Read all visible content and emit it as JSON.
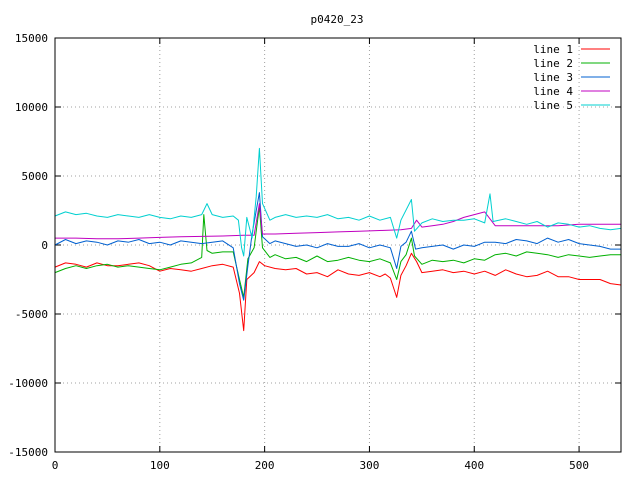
{
  "chart_data": {
    "type": "line",
    "title": "p0420_23",
    "xlabel": "",
    "ylabel": "",
    "xlim": [
      0,
      540
    ],
    "ylim": [
      -15000,
      15000
    ],
    "x_ticks": [
      0,
      100,
      200,
      300,
      400,
      500
    ],
    "y_ticks": [
      -15000,
      -10000,
      -5000,
      0,
      5000,
      10000,
      15000
    ],
    "grid": true,
    "legend_position": "top-right",
    "colors": {
      "line 1": "#ff0000",
      "line 2": "#00b000",
      "line 3": "#0060d0",
      "line 4": "#c000c0",
      "line 5": "#00d0d0"
    },
    "series": [
      {
        "name": "line 1",
        "points": [
          [
            0,
            -1600
          ],
          [
            10,
            -1300
          ],
          [
            20,
            -1400
          ],
          [
            30,
            -1600
          ],
          [
            40,
            -1300
          ],
          [
            50,
            -1500
          ],
          [
            60,
            -1500
          ],
          [
            70,
            -1400
          ],
          [
            80,
            -1300
          ],
          [
            90,
            -1500
          ],
          [
            100,
            -1900
          ],
          [
            110,
            -1700
          ],
          [
            120,
            -1800
          ],
          [
            130,
            -1900
          ],
          [
            140,
            -1700
          ],
          [
            150,
            -1500
          ],
          [
            160,
            -1400
          ],
          [
            170,
            -1600
          ],
          [
            176,
            -3500
          ],
          [
            180,
            -6200
          ],
          [
            183,
            -2500
          ],
          [
            190,
            -2000
          ],
          [
            195,
            -1200
          ],
          [
            200,
            -1500
          ],
          [
            210,
            -1700
          ],
          [
            220,
            -1800
          ],
          [
            230,
            -1700
          ],
          [
            240,
            -2100
          ],
          [
            250,
            -2000
          ],
          [
            260,
            -2300
          ],
          [
            270,
            -1800
          ],
          [
            280,
            -2100
          ],
          [
            290,
            -2200
          ],
          [
            300,
            -2000
          ],
          [
            310,
            -2300
          ],
          [
            315,
            -2100
          ],
          [
            320,
            -2400
          ],
          [
            326,
            -3800
          ],
          [
            330,
            -2200
          ],
          [
            335,
            -1500
          ],
          [
            340,
            -600
          ],
          [
            345,
            -1200
          ],
          [
            350,
            -2000
          ],
          [
            360,
            -1900
          ],
          [
            370,
            -1800
          ],
          [
            380,
            -2000
          ],
          [
            390,
            -1900
          ],
          [
            400,
            -2100
          ],
          [
            410,
            -1900
          ],
          [
            420,
            -2200
          ],
          [
            430,
            -1800
          ],
          [
            440,
            -2100
          ],
          [
            450,
            -2300
          ],
          [
            460,
            -2200
          ],
          [
            470,
            -1900
          ],
          [
            480,
            -2300
          ],
          [
            490,
            -2300
          ],
          [
            500,
            -2500
          ],
          [
            510,
            -2500
          ],
          [
            520,
            -2500
          ],
          [
            530,
            -2800
          ],
          [
            540,
            -2900
          ]
        ]
      },
      {
        "name": "line 2",
        "points": [
          [
            0,
            -2000
          ],
          [
            10,
            -1700
          ],
          [
            20,
            -1500
          ],
          [
            30,
            -1700
          ],
          [
            40,
            -1500
          ],
          [
            50,
            -1400
          ],
          [
            60,
            -1600
          ],
          [
            70,
            -1500
          ],
          [
            80,
            -1600
          ],
          [
            90,
            -1700
          ],
          [
            100,
            -1800
          ],
          [
            110,
            -1600
          ],
          [
            120,
            -1400
          ],
          [
            130,
            -1300
          ],
          [
            140,
            -900
          ],
          [
            142,
            2200
          ],
          [
            145,
            -400
          ],
          [
            150,
            -600
          ],
          [
            160,
            -500
          ],
          [
            170,
            -500
          ],
          [
            176,
            -2500
          ],
          [
            180,
            -3800
          ],
          [
            184,
            -1000
          ],
          [
            190,
            -200
          ],
          [
            195,
            2800
          ],
          [
            198,
            -200
          ],
          [
            205,
            -900
          ],
          [
            210,
            -700
          ],
          [
            220,
            -1000
          ],
          [
            230,
            -900
          ],
          [
            240,
            -1200
          ],
          [
            250,
            -800
          ],
          [
            260,
            -1200
          ],
          [
            270,
            -1100
          ],
          [
            280,
            -900
          ],
          [
            290,
            -1100
          ],
          [
            300,
            -1200
          ],
          [
            310,
            -1000
          ],
          [
            320,
            -1300
          ],
          [
            326,
            -2500
          ],
          [
            330,
            -1200
          ],
          [
            335,
            -700
          ],
          [
            340,
            500
          ],
          [
            343,
            -800
          ],
          [
            350,
            -1400
          ],
          [
            360,
            -1100
          ],
          [
            370,
            -1200
          ],
          [
            380,
            -1100
          ],
          [
            390,
            -1300
          ],
          [
            400,
            -1000
          ],
          [
            410,
            -1100
          ],
          [
            420,
            -700
          ],
          [
            430,
            -600
          ],
          [
            440,
            -800
          ],
          [
            450,
            -500
          ],
          [
            460,
            -600
          ],
          [
            470,
            -700
          ],
          [
            480,
            -900
          ],
          [
            490,
            -700
          ],
          [
            500,
            -800
          ],
          [
            510,
            -900
          ],
          [
            520,
            -800
          ],
          [
            530,
            -700
          ],
          [
            540,
            -700
          ]
        ]
      },
      {
        "name": "line 3",
        "points": [
          [
            0,
            0
          ],
          [
            10,
            400
          ],
          [
            20,
            100
          ],
          [
            30,
            300
          ],
          [
            40,
            200
          ],
          [
            50,
            0
          ],
          [
            60,
            300
          ],
          [
            70,
            200
          ],
          [
            80,
            400
          ],
          [
            90,
            100
          ],
          [
            100,
            200
          ],
          [
            110,
            0
          ],
          [
            120,
            300
          ],
          [
            130,
            200
          ],
          [
            140,
            100
          ],
          [
            150,
            200
          ],
          [
            160,
            300
          ],
          [
            170,
            -200
          ],
          [
            176,
            -2800
          ],
          [
            180,
            -4000
          ],
          [
            184,
            -1500
          ],
          [
            188,
            800
          ],
          [
            195,
            3800
          ],
          [
            198,
            600
          ],
          [
            205,
            100
          ],
          [
            210,
            300
          ],
          [
            220,
            100
          ],
          [
            230,
            -100
          ],
          [
            240,
            0
          ],
          [
            250,
            -200
          ],
          [
            260,
            100
          ],
          [
            270,
            -100
          ],
          [
            280,
            -100
          ],
          [
            290,
            100
          ],
          [
            300,
            -200
          ],
          [
            310,
            0
          ],
          [
            320,
            -200
          ],
          [
            326,
            -1700
          ],
          [
            330,
            -100
          ],
          [
            335,
            200
          ],
          [
            340,
            1000
          ],
          [
            344,
            -300
          ],
          [
            350,
            -200
          ],
          [
            360,
            -100
          ],
          [
            370,
            0
          ],
          [
            380,
            -300
          ],
          [
            390,
            0
          ],
          [
            400,
            -100
          ],
          [
            410,
            200
          ],
          [
            420,
            200
          ],
          [
            430,
            100
          ],
          [
            440,
            400
          ],
          [
            450,
            300
          ],
          [
            460,
            100
          ],
          [
            470,
            500
          ],
          [
            480,
            200
          ],
          [
            490,
            400
          ],
          [
            500,
            100
          ],
          [
            510,
            0
          ],
          [
            520,
            -100
          ],
          [
            530,
            -300
          ],
          [
            540,
            -300
          ]
        ]
      },
      {
        "name": "line 4",
        "points": [
          [
            0,
            500
          ],
          [
            20,
            500
          ],
          [
            40,
            450
          ],
          [
            60,
            450
          ],
          [
            80,
            500
          ],
          [
            100,
            550
          ],
          [
            120,
            600
          ],
          [
            140,
            620
          ],
          [
            160,
            650
          ],
          [
            180,
            700
          ],
          [
            190,
            700
          ],
          [
            195,
            3000
          ],
          [
            198,
            800
          ],
          [
            210,
            800
          ],
          [
            230,
            850
          ],
          [
            250,
            900
          ],
          [
            270,
            950
          ],
          [
            290,
            1000
          ],
          [
            310,
            1050
          ],
          [
            330,
            1100
          ],
          [
            340,
            1200
          ],
          [
            345,
            1800
          ],
          [
            350,
            1300
          ],
          [
            360,
            1400
          ],
          [
            370,
            1500
          ],
          [
            380,
            1700
          ],
          [
            390,
            2000
          ],
          [
            400,
            2200
          ],
          [
            410,
            2400
          ],
          [
            420,
            1400
          ],
          [
            430,
            1400
          ],
          [
            440,
            1400
          ],
          [
            460,
            1400
          ],
          [
            480,
            1400
          ],
          [
            500,
            1500
          ],
          [
            520,
            1500
          ],
          [
            540,
            1500
          ]
        ]
      },
      {
        "name": "line 5",
        "points": [
          [
            0,
            2100
          ],
          [
            10,
            2400
          ],
          [
            20,
            2200
          ],
          [
            30,
            2300
          ],
          [
            40,
            2100
          ],
          [
            50,
            2000
          ],
          [
            60,
            2200
          ],
          [
            70,
            2100
          ],
          [
            80,
            2000
          ],
          [
            90,
            2200
          ],
          [
            100,
            2000
          ],
          [
            110,
            1900
          ],
          [
            120,
            2100
          ],
          [
            130,
            2000
          ],
          [
            140,
            2200
          ],
          [
            145,
            3000
          ],
          [
            150,
            2200
          ],
          [
            160,
            2000
          ],
          [
            170,
            2100
          ],
          [
            175,
            1800
          ],
          [
            178,
            -200
          ],
          [
            180,
            -800
          ],
          [
            183,
            2000
          ],
          [
            188,
            500
          ],
          [
            192,
            3500
          ],
          [
            195,
            7000
          ],
          [
            198,
            3000
          ],
          [
            205,
            1800
          ],
          [
            210,
            2000
          ],
          [
            220,
            2200
          ],
          [
            230,
            2000
          ],
          [
            240,
            2100
          ],
          [
            250,
            2000
          ],
          [
            260,
            2200
          ],
          [
            270,
            1900
          ],
          [
            280,
            2000
          ],
          [
            290,
            1800
          ],
          [
            300,
            2100
          ],
          [
            310,
            1800
          ],
          [
            320,
            2000
          ],
          [
            326,
            500
          ],
          [
            330,
            1800
          ],
          [
            340,
            3300
          ],
          [
            343,
            1000
          ],
          [
            350,
            1600
          ],
          [
            360,
            1900
          ],
          [
            370,
            1700
          ],
          [
            380,
            1800
          ],
          [
            390,
            1800
          ],
          [
            400,
            1900
          ],
          [
            410,
            1600
          ],
          [
            415,
            3700
          ],
          [
            418,
            1700
          ],
          [
            430,
            1900
          ],
          [
            440,
            1700
          ],
          [
            450,
            1500
          ],
          [
            460,
            1700
          ],
          [
            470,
            1300
          ],
          [
            480,
            1600
          ],
          [
            490,
            1500
          ],
          [
            500,
            1300
          ],
          [
            510,
            1400
          ],
          [
            520,
            1200
          ],
          [
            530,
            1100
          ],
          [
            540,
            1200
          ]
        ]
      }
    ]
  }
}
